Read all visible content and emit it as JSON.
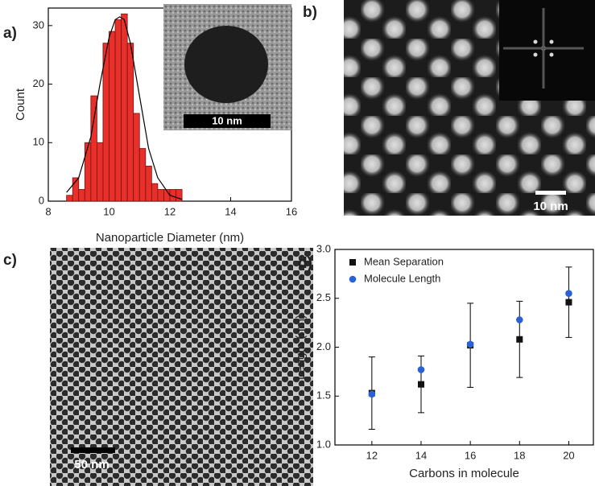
{
  "chart_data": [
    {
      "type": "histogram",
      "panel_label": "a)",
      "xlabel": "Nanoparticle Diameter (nm)",
      "ylabel": "Count",
      "color": "#e8302a",
      "bins": [
        8.6,
        8.8,
        9.0,
        9.2,
        9.4,
        9.6,
        9.8,
        10.0,
        10.2,
        10.4,
        10.6,
        10.8,
        11.0,
        11.2,
        11.4,
        11.6,
        11.8,
        12.0,
        12.2,
        12.4
      ],
      "values": [
        1,
        4,
        2,
        10,
        18,
        10,
        27,
        29,
        31,
        32,
        27,
        15,
        9,
        6,
        3,
        2,
        2,
        2,
        2
      ],
      "fit": {
        "x": [
          8.6,
          9.0,
          9.4,
          9.7,
          10.0,
          10.2,
          10.35,
          10.5,
          10.7,
          11.0,
          11.3,
          11.6,
          12.0,
          12.4
        ],
        "values": [
          1.5,
          4,
          11,
          20,
          28,
          31,
          31.5,
          31,
          27,
          18,
          9,
          4,
          1,
          0.3
        ]
      },
      "xlim": [
        8,
        16
      ],
      "xticks": [
        8,
        10,
        12,
        14,
        16
      ],
      "ylim": [
        0,
        33
      ],
      "yticks": [
        0,
        10,
        20,
        30
      ],
      "inset_scale_bar": "10 nm"
    },
    {
      "type": "scatter",
      "panel_label": "d)",
      "xlabel": "Carbons in molecule",
      "ylabel": "Length (nm)",
      "x": [
        12,
        14,
        16,
        18,
        20
      ],
      "series": [
        {
          "name": "Mean Separation",
          "color": "#111111",
          "marker": "square",
          "values": [
            1.53,
            1.62,
            2.02,
            2.08,
            2.46
          ],
          "errors": [
            0.37,
            0.29,
            0.43,
            0.39,
            0.36
          ]
        },
        {
          "name": "Molecule Length",
          "color": "#2a62d6",
          "marker": "circle",
          "values": [
            1.52,
            1.77,
            2.03,
            2.28,
            2.55
          ]
        }
      ],
      "xlim": [
        10.5,
        21
      ],
      "xticks": [
        12,
        14,
        16,
        18,
        20
      ],
      "ylim": [
        1,
        3
      ],
      "yticks": [
        {
          "value": 1,
          "label": "1.0"
        },
        1.5,
        {
          "value": 2,
          "label": "2.0"
        },
        2.5,
        {
          "value": 3,
          "label": "3.0"
        }
      ],
      "legend": "upper-left"
    }
  ],
  "images": [
    {
      "panel_label": "b)",
      "scale_bar": "10 nm"
    },
    {
      "panel_label": "c)",
      "scale_bar": "50 nm"
    }
  ]
}
